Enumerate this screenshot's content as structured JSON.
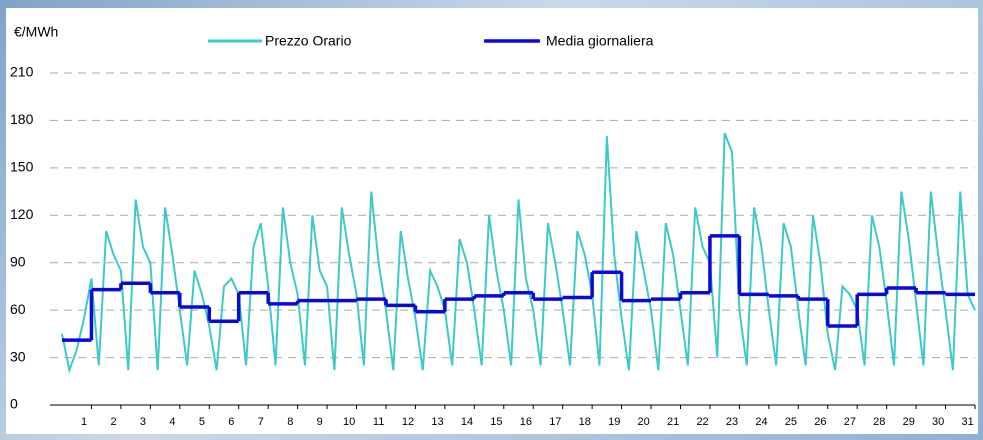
{
  "chart_data": {
    "type": "line",
    "y_label": "€/MWh",
    "ylim": [
      0,
      210
    ],
    "yticks": [
      0,
      30,
      60,
      90,
      120,
      150,
      180,
      210
    ],
    "grid": true,
    "xlim": [
      0,
      31
    ],
    "categories": [
      "1",
      "2",
      "3",
      "4",
      "5",
      "6",
      "7",
      "8",
      "9",
      "10",
      "11",
      "12",
      "13",
      "14",
      "15",
      "16",
      "17",
      "18",
      "19",
      "20",
      "21",
      "22",
      "23",
      "24",
      "25",
      "26",
      "27",
      "28",
      "29",
      "30",
      "31"
    ],
    "series": [
      {
        "name": "Prezzo Orario",
        "color": "#3ec9c9",
        "x": [
          0,
          0.25,
          0.5,
          0.75,
          1,
          1.25,
          1.5,
          1.75,
          2,
          2.25,
          2.5,
          2.75,
          3,
          3.25,
          3.5,
          3.75,
          4,
          4.25,
          4.5,
          4.75,
          5,
          5.25,
          5.5,
          5.75,
          6,
          6.25,
          6.5,
          6.75,
          7,
          7.25,
          7.5,
          7.75,
          8,
          8.25,
          8.5,
          8.75,
          9,
          9.25,
          9.5,
          9.75,
          10,
          10.25,
          10.5,
          10.75,
          11,
          11.25,
          11.5,
          11.75,
          12,
          12.25,
          12.5,
          12.75,
          13,
          13.25,
          13.5,
          13.75,
          14,
          14.25,
          14.5,
          14.75,
          15,
          15.25,
          15.5,
          15.75,
          16,
          16.25,
          16.5,
          16.75,
          17,
          17.25,
          17.5,
          17.75,
          18,
          18.25,
          18.5,
          18.75,
          19,
          19.25,
          19.5,
          19.75,
          20,
          20.25,
          20.5,
          20.75,
          21,
          21.25,
          21.5,
          21.75,
          22,
          22.25,
          22.5,
          22.75,
          23,
          23.25,
          23.5,
          23.75,
          24,
          24.25,
          24.5,
          24.75,
          25,
          25.25,
          25.5,
          25.75,
          26,
          26.25,
          26.5,
          26.75,
          27,
          27.25,
          27.5,
          27.75,
          28,
          28.25,
          28.5,
          28.75,
          29,
          29.25,
          29.5,
          29.75,
          30,
          30.25,
          30.5,
          30.75,
          31
        ],
        "values": [
          45,
          22,
          35,
          55,
          80,
          25,
          110,
          95,
          85,
          22,
          130,
          100,
          90,
          22,
          125,
          95,
          60,
          25,
          85,
          70,
          50,
          22,
          75,
          80,
          70,
          25,
          100,
          115,
          75,
          25,
          125,
          90,
          70,
          25,
          120,
          85,
          75,
          22,
          125,
          95,
          70,
          25,
          135,
          90,
          60,
          22,
          110,
          80,
          55,
          22,
          85,
          75,
          60,
          25,
          105,
          90,
          60,
          25,
          120,
          85,
          60,
          25,
          130,
          80,
          60,
          25,
          115,
          90,
          60,
          25,
          110,
          95,
          70,
          25,
          170,
          95,
          55,
          22,
          110,
          85,
          60,
          22,
          115,
          95,
          60,
          25,
          125,
          100,
          90,
          30,
          172,
          160,
          60,
          25,
          125,
          100,
          60,
          25,
          115,
          100,
          60,
          25,
          120,
          90,
          45,
          22,
          75,
          70,
          60,
          25,
          120,
          100,
          65,
          25,
          135,
          105,
          65,
          25,
          135,
          95,
          60,
          22,
          135,
          70,
          60
        ]
      },
      {
        "name": "Media giornaliera",
        "color": "#0a0ad8",
        "values": [
          41,
          73,
          77,
          71,
          62,
          53,
          71,
          64,
          66,
          66,
          67,
          63,
          59,
          67,
          69,
          71,
          67,
          68,
          84,
          66,
          67,
          71,
          107,
          70,
          69,
          67,
          50,
          70,
          74,
          71,
          70
        ]
      }
    ]
  }
}
